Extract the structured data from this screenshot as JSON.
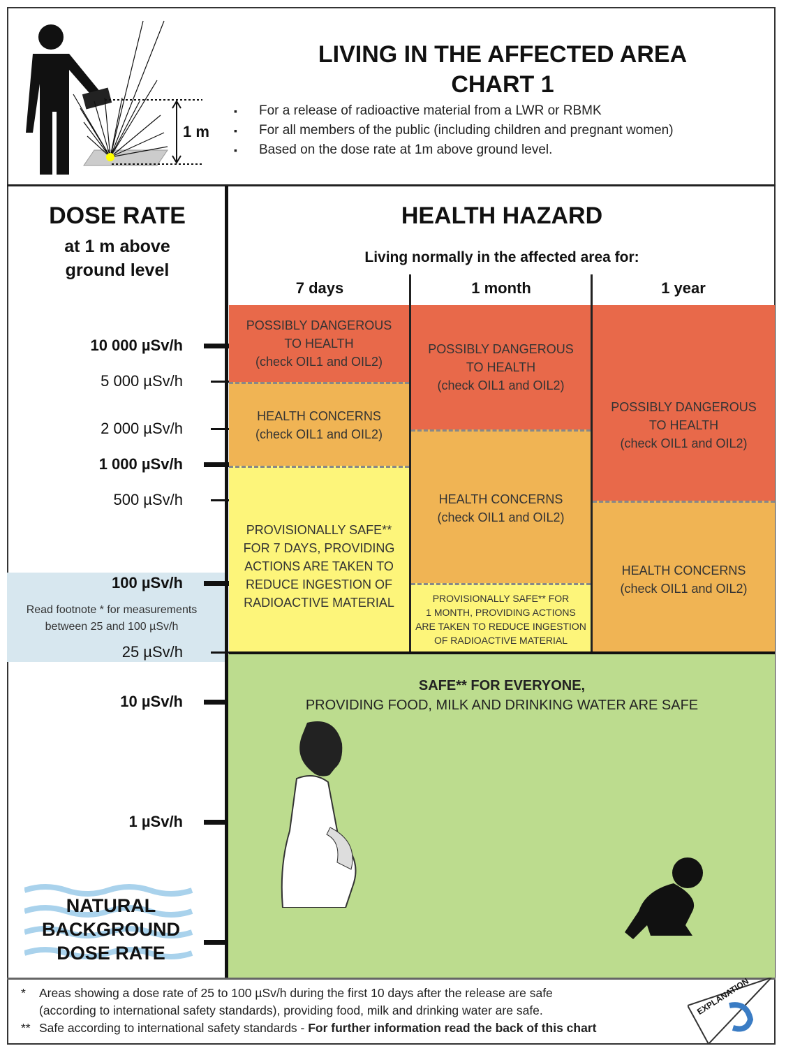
{
  "header": {
    "title_line1": "LIVING IN THE AFFECTED AREA",
    "title_line2": "CHART 1",
    "measure_label": "1 m",
    "bullets": [
      "For a release of radioactive material from a LWR or RBMK",
      "For all members of the public (including children and pregnant women)",
      "Based on the dose rate at 1m above ground level."
    ]
  },
  "left": {
    "title": "DOSE RATE",
    "subtitle1": "at 1 m above",
    "subtitle2": "ground level",
    "ticks": [
      "10 000 µSv/h",
      "5 000 µSv/h",
      "2 000 µSv/h",
      "1 000 µSv/h",
      "500 µSv/h",
      "100 µSv/h",
      "25 µSv/h",
      "10 µSv/h",
      "1 µSv/h"
    ],
    "footnote_line1": "Read footnote * for measurements",
    "footnote_line2": "between 25 and 100 µSv/h",
    "natural": [
      "NATURAL",
      "BACKGROUND",
      "DOSE RATE"
    ]
  },
  "hazard": {
    "title": "HEALTH HAZARD",
    "subtitle": "Living normally in the affected area for:",
    "columns": [
      "7 days",
      "1 month",
      "1 year"
    ],
    "danger": [
      "POSSIBLY DANGEROUS",
      "TO HEALTH",
      "(check OIL1 and OIL2)"
    ],
    "concern": [
      "HEALTH CONCERNS",
      "(check OIL1 and OIL2)"
    ],
    "safe7": [
      "PROVISIONALLY SAFE**",
      "FOR 7 DAYS, PROVIDING",
      "ACTIONS ARE TAKEN TO",
      "REDUCE INGESTION OF",
      "RADIOACTIVE MATERIAL"
    ],
    "safe1m": [
      "PROVISIONALLY SAFE** FOR",
      "1 MONTH, PROVIDING ACTIONS",
      "ARE TAKEN TO REDUCE INGESTION",
      "OF RADIOACTIVE MATERIAL"
    ],
    "safe_all1": "SAFE** FOR EVERYONE,",
    "safe_all2": "PROVIDING FOOD, MILK AND DRINKING WATER ARE SAFE"
  },
  "footer": {
    "n1_mark": "*",
    "n1a": "Areas showing a dose rate of 25 to 100 µSv/h during the first 10 days after the release are safe",
    "n1b": "(according to international safety standards), providing food, milk and drinking water are safe.",
    "n2_mark": "**",
    "n2": "Safe according to international safety standards - ",
    "n2_bold": "For further information read the back of this chart",
    "explanation": "EXPLANATION"
  },
  "colors": {
    "danger": "#e8694a",
    "concern": "#f0b454",
    "provisional": "#fdf57a",
    "safe": "#bcdc8e",
    "band": "#d7e7ef"
  }
}
